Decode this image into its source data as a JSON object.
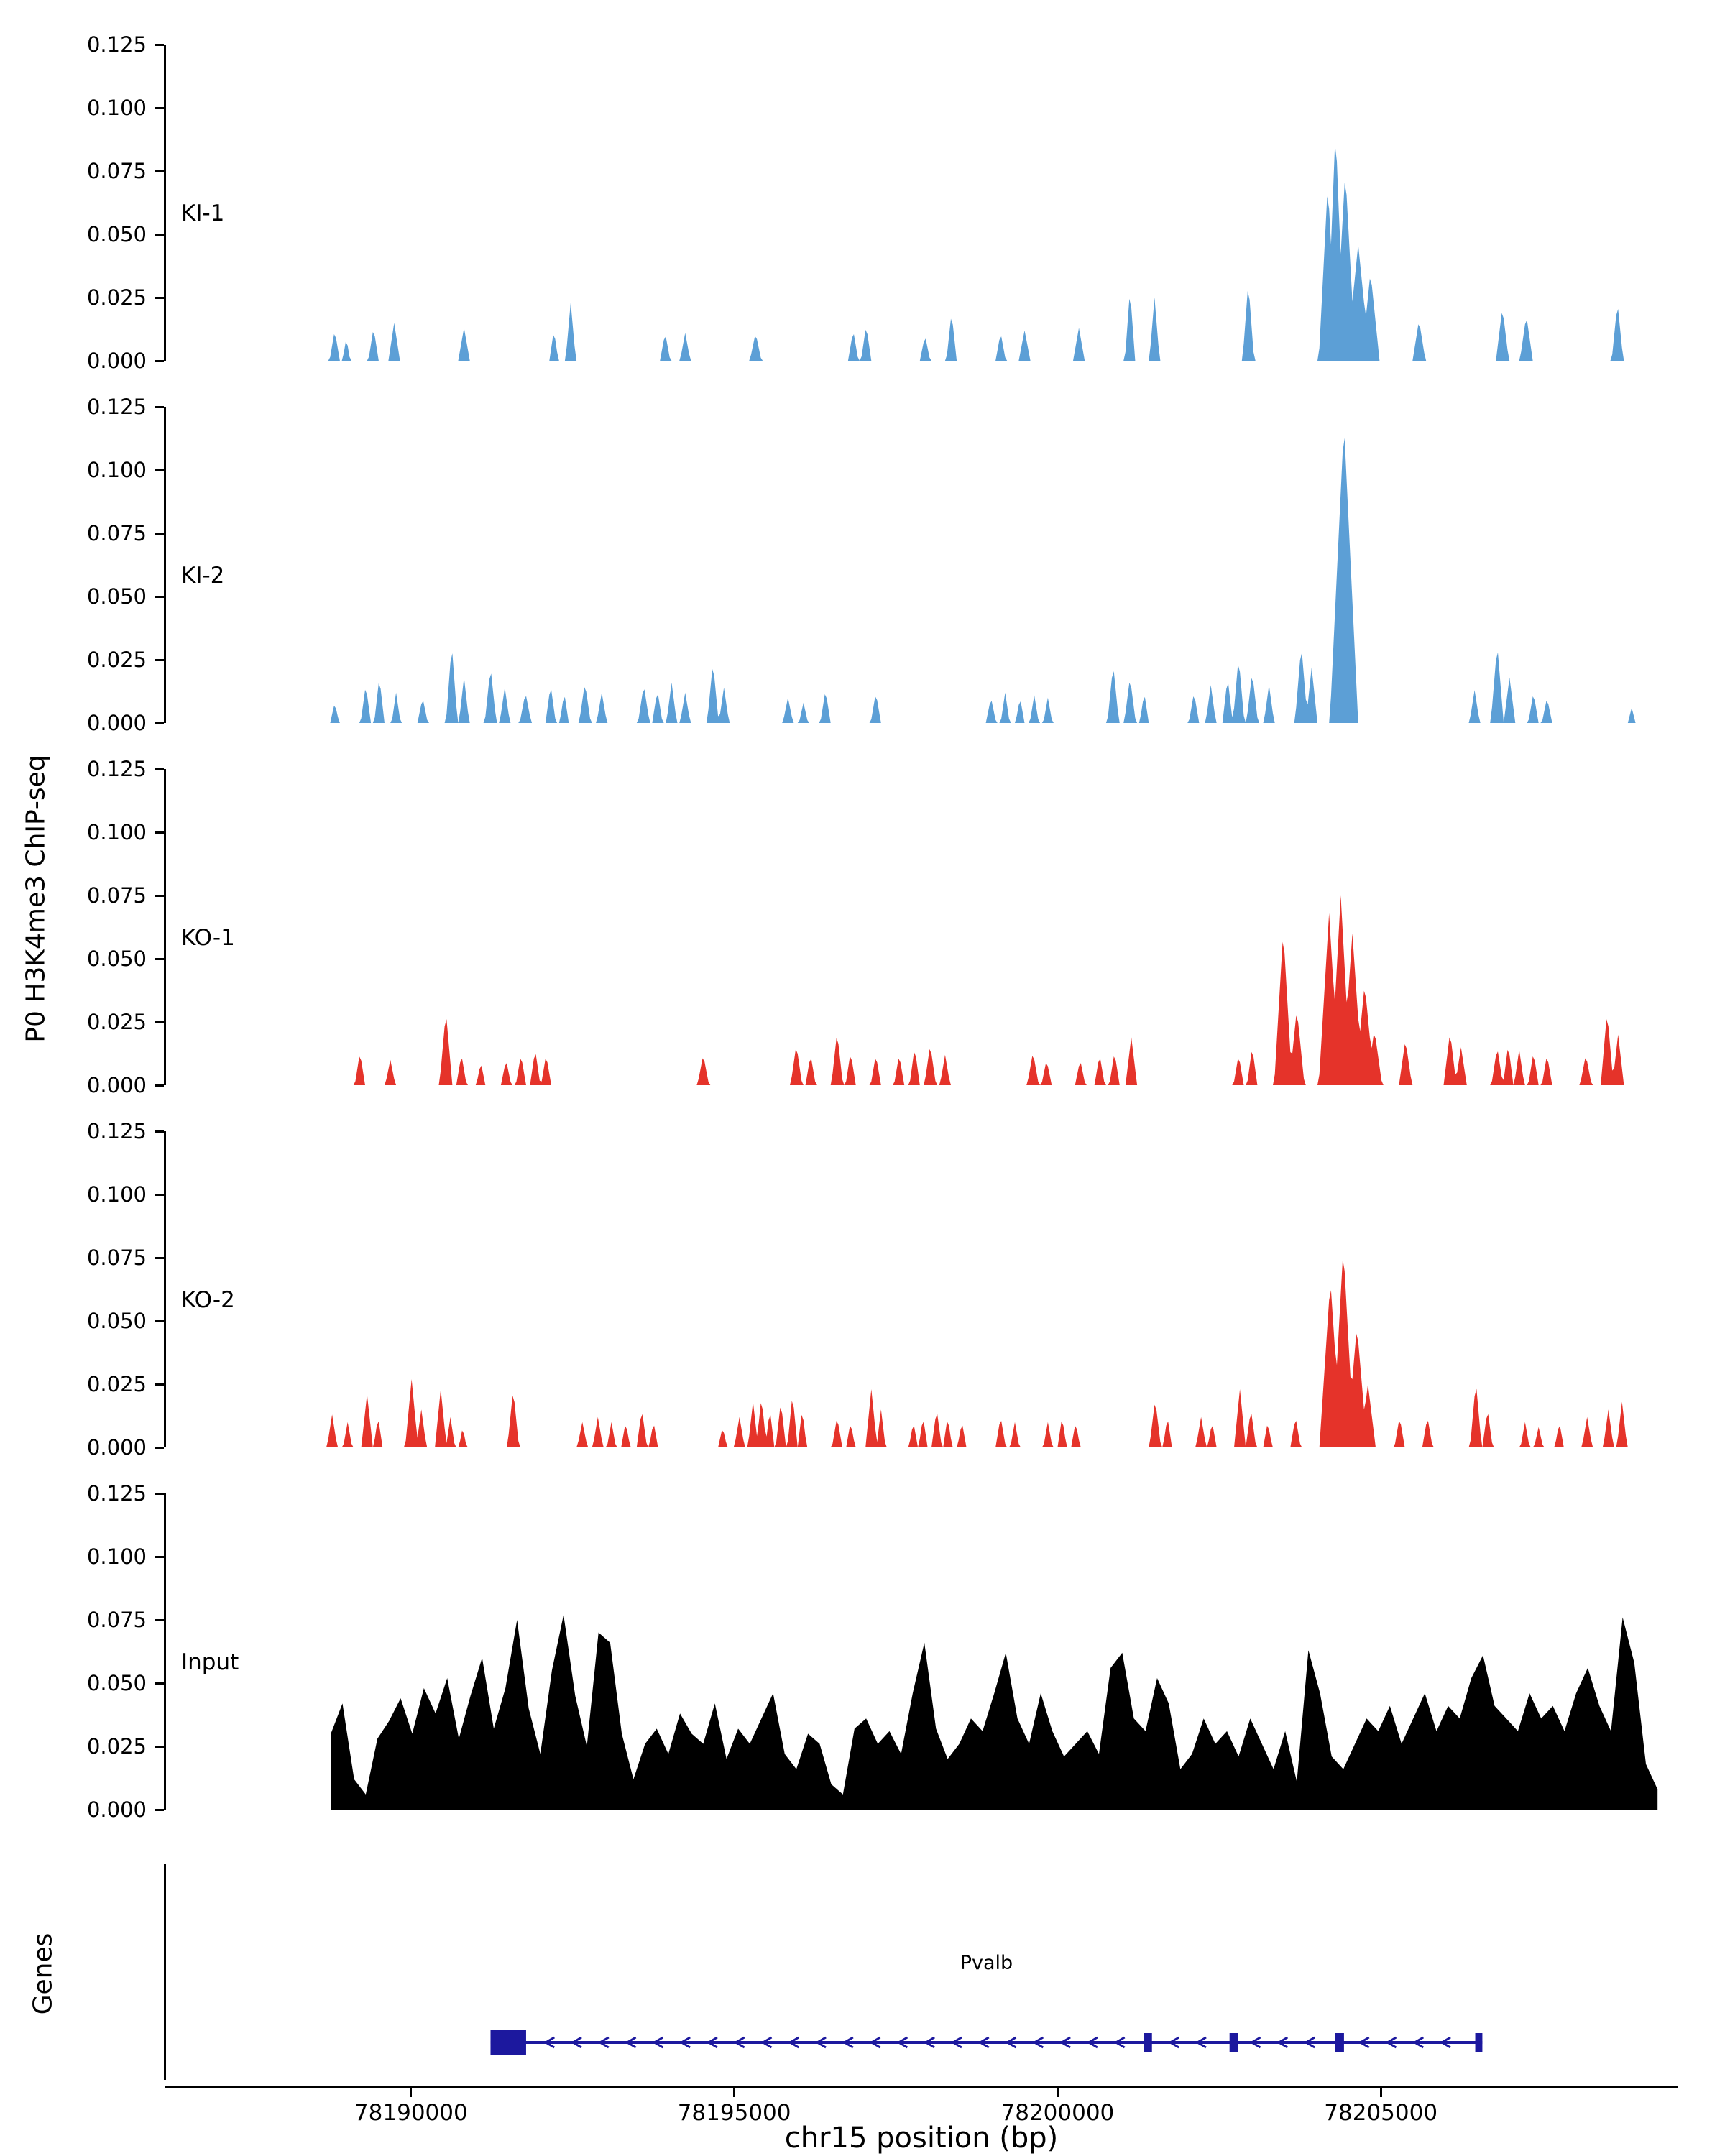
{
  "chart_data": {
    "type": "area",
    "title": "",
    "xlabel": "chr15 position (bp)",
    "ylabel": "P0 H3K4me3 ChIP-seq",
    "genes_panel_label": "Genes",
    "x_range": [
      78186200,
      78209600
    ],
    "x_ticks": [
      78190000,
      78195000,
      78200000,
      78205000
    ],
    "y_range": [
      0,
      0.125
    ],
    "y_ticks": [
      0.0,
      0.025,
      0.05,
      0.075,
      0.1,
      0.125
    ],
    "grid": false,
    "legend": "none",
    "colors": {
      "ki": "#5C9FD6",
      "ko": "#E5332A",
      "input": "#000000",
      "gene": "#1C189E"
    },
    "tracks": [
      {
        "name": "KI-1",
        "color": "#5C9FD6",
        "peaks": [
          [
            78188820,
            80,
            0.012
          ],
          [
            78189000,
            60,
            0.009
          ],
          [
            78189420,
            80,
            0.013
          ],
          [
            78189740,
            90,
            0.015
          ],
          [
            78190820,
            90,
            0.013
          ],
          [
            78192210,
            70,
            0.012
          ],
          [
            78192470,
            80,
            0.023
          ],
          [
            78193930,
            80,
            0.011
          ],
          [
            78194240,
            80,
            0.011
          ],
          [
            78195330,
            90,
            0.011
          ],
          [
            78196840,
            80,
            0.012
          ],
          [
            78197040,
            80,
            0.014
          ],
          [
            78197950,
            80,
            0.01
          ],
          [
            78198360,
            80,
            0.019
          ],
          [
            78199120,
            80,
            0.011
          ],
          [
            78199490,
            90,
            0.012
          ],
          [
            78200330,
            90,
            0.013
          ],
          [
            78201120,
            80,
            0.028
          ],
          [
            78201500,
            80,
            0.025
          ],
          [
            78202950,
            90,
            0.031
          ],
          [
            78204180,
            140,
            0.07
          ],
          [
            78204300,
            140,
            0.092
          ],
          [
            78204450,
            160,
            0.075
          ],
          [
            78204650,
            180,
            0.046
          ],
          [
            78204840,
            140,
            0.035
          ],
          [
            78205590,
            100,
            0.016
          ],
          [
            78206880,
            100,
            0.021
          ],
          [
            78207250,
            100,
            0.018
          ],
          [
            78208660,
            90,
            0.023
          ]
        ]
      },
      {
        "name": "KI-2",
        "color": "#5C9FD6",
        "peaks": [
          [
            78188820,
            70,
            0.008
          ],
          [
            78189300,
            80,
            0.015
          ],
          [
            78189510,
            80,
            0.018
          ],
          [
            78189770,
            70,
            0.012
          ],
          [
            78190180,
            80,
            0.01
          ],
          [
            78190630,
            90,
            0.031
          ],
          [
            78190820,
            80,
            0.018
          ],
          [
            78191230,
            90,
            0.022
          ],
          [
            78191450,
            80,
            0.014
          ],
          [
            78191770,
            90,
            0.012
          ],
          [
            78192160,
            80,
            0.015
          ],
          [
            78192370,
            70,
            0.012
          ],
          [
            78192690,
            90,
            0.016
          ],
          [
            78192950,
            80,
            0.012
          ],
          [
            78193600,
            90,
            0.015
          ],
          [
            78193810,
            80,
            0.013
          ],
          [
            78194030,
            80,
            0.016
          ],
          [
            78194240,
            80,
            0.012
          ],
          [
            78194670,
            90,
            0.024
          ],
          [
            78194840,
            80,
            0.014
          ],
          [
            78195830,
            80,
            0.01
          ],
          [
            78196070,
            70,
            0.008
          ],
          [
            78196410,
            80,
            0.013
          ],
          [
            78197190,
            80,
            0.012
          ],
          [
            78198970,
            80,
            0.01
          ],
          [
            78199190,
            70,
            0.012
          ],
          [
            78199420,
            70,
            0.01
          ],
          [
            78199640,
            70,
            0.011
          ],
          [
            78199850,
            70,
            0.01
          ],
          [
            78200860,
            90,
            0.023
          ],
          [
            78201120,
            90,
            0.018
          ],
          [
            78201340,
            70,
            0.012
          ],
          [
            78202110,
            80,
            0.012
          ],
          [
            78202370,
            80,
            0.015
          ],
          [
            78202630,
            80,
            0.018
          ],
          [
            78202800,
            90,
            0.026
          ],
          [
            78203010,
            90,
            0.02
          ],
          [
            78203270,
            80,
            0.015
          ],
          [
            78203770,
            100,
            0.031
          ],
          [
            78203930,
            90,
            0.022
          ],
          [
            78204430,
            220,
            0.118
          ],
          [
            78206450,
            80,
            0.013
          ],
          [
            78206800,
            100,
            0.031
          ],
          [
            78206990,
            90,
            0.018
          ],
          [
            78207360,
            80,
            0.012
          ],
          [
            78207570,
            80,
            0.01
          ],
          [
            78208880,
            60,
            0.006
          ]
        ]
      },
      {
        "name": "KO-1",
        "color": "#E5332A",
        "peaks": [
          [
            78189210,
            80,
            0.013
          ],
          [
            78189680,
            80,
            0.01
          ],
          [
            78190540,
            100,
            0.029
          ],
          [
            78190780,
            80,
            0.012
          ],
          [
            78191080,
            70,
            0.009
          ],
          [
            78191470,
            80,
            0.01
          ],
          [
            78191700,
            80,
            0.012
          ],
          [
            78191920,
            80,
            0.014
          ],
          [
            78192090,
            80,
            0.012
          ],
          [
            78194520,
            90,
            0.012
          ],
          [
            78195960,
            90,
            0.016
          ],
          [
            78196180,
            80,
            0.012
          ],
          [
            78196590,
            90,
            0.021
          ],
          [
            78196800,
            80,
            0.013
          ],
          [
            78197190,
            80,
            0.012
          ],
          [
            78197550,
            80,
            0.012
          ],
          [
            78197790,
            80,
            0.015
          ],
          [
            78198030,
            90,
            0.016
          ],
          [
            78198260,
            80,
            0.012
          ],
          [
            78199620,
            90,
            0.013
          ],
          [
            78199830,
            80,
            0.01
          ],
          [
            78200350,
            80,
            0.01
          ],
          [
            78200650,
            80,
            0.012
          ],
          [
            78200880,
            80,
            0.013
          ],
          [
            78201140,
            90,
            0.019
          ],
          [
            78202800,
            80,
            0.012
          ],
          [
            78203010,
            80,
            0.015
          ],
          [
            78203490,
            140,
            0.061
          ],
          [
            78203700,
            120,
            0.03
          ],
          [
            78204200,
            160,
            0.068
          ],
          [
            78204380,
            160,
            0.075
          ],
          [
            78204560,
            160,
            0.06
          ],
          [
            78204750,
            150,
            0.04
          ],
          [
            78204900,
            120,
            0.022
          ],
          [
            78205380,
            100,
            0.018
          ],
          [
            78206070,
            100,
            0.021
          ],
          [
            78206240,
            90,
            0.015
          ],
          [
            78206800,
            90,
            0.015
          ],
          [
            78206970,
            80,
            0.016
          ],
          [
            78207140,
            80,
            0.014
          ],
          [
            78207360,
            80,
            0.013
          ],
          [
            78207570,
            80,
            0.012
          ],
          [
            78208170,
            90,
            0.012
          ],
          [
            78208500,
            100,
            0.029
          ],
          [
            78208670,
            90,
            0.02
          ]
        ]
      },
      {
        "name": "KO-2",
        "color": "#E5332A",
        "peaks": [
          [
            78188780,
            80,
            0.013
          ],
          [
            78189020,
            70,
            0.01
          ],
          [
            78189320,
            90,
            0.021
          ],
          [
            78189490,
            70,
            0.012
          ],
          [
            78190010,
            100,
            0.027
          ],
          [
            78190160,
            80,
            0.015
          ],
          [
            78190460,
            90,
            0.023
          ],
          [
            78190610,
            70,
            0.012
          ],
          [
            78190800,
            60,
            0.008
          ],
          [
            78191580,
            90,
            0.023
          ],
          [
            78192650,
            80,
            0.01
          ],
          [
            78192890,
            80,
            0.012
          ],
          [
            78193100,
            70,
            0.01
          ],
          [
            78193320,
            70,
            0.01
          ],
          [
            78193570,
            80,
            0.015
          ],
          [
            78193750,
            70,
            0.01
          ],
          [
            78194820,
            70,
            0.008
          ],
          [
            78195080,
            80,
            0.012
          ],
          [
            78195290,
            80,
            0.018
          ],
          [
            78195420,
            80,
            0.02
          ],
          [
            78195550,
            70,
            0.015
          ],
          [
            78195720,
            80,
            0.018
          ],
          [
            78195900,
            80,
            0.021
          ],
          [
            78196050,
            70,
            0.015
          ],
          [
            78196590,
            80,
            0.012
          ],
          [
            78196800,
            70,
            0.01
          ],
          [
            78197120,
            90,
            0.023
          ],
          [
            78197270,
            70,
            0.015
          ],
          [
            78197770,
            70,
            0.01
          ],
          [
            78197920,
            70,
            0.012
          ],
          [
            78198130,
            80,
            0.015
          ],
          [
            78198300,
            70,
            0.012
          ],
          [
            78198520,
            70,
            0.01
          ],
          [
            78199120,
            80,
            0.012
          ],
          [
            78199340,
            70,
            0.01
          ],
          [
            78199850,
            70,
            0.01
          ],
          [
            78200070,
            70,
            0.012
          ],
          [
            78200280,
            70,
            0.01
          ],
          [
            78201510,
            90,
            0.019
          ],
          [
            78201700,
            70,
            0.012
          ],
          [
            78202220,
            80,
            0.012
          ],
          [
            78202390,
            70,
            0.01
          ],
          [
            78202820,
            90,
            0.023
          ],
          [
            78202990,
            80,
            0.015
          ],
          [
            78203250,
            70,
            0.01
          ],
          [
            78203680,
            80,
            0.012
          ],
          [
            78204220,
            170,
            0.066
          ],
          [
            78204420,
            170,
            0.079
          ],
          [
            78204630,
            160,
            0.048
          ],
          [
            78204800,
            120,
            0.025
          ],
          [
            78205290,
            80,
            0.012
          ],
          [
            78205720,
            80,
            0.012
          ],
          [
            78206470,
            90,
            0.026
          ],
          [
            78206650,
            80,
            0.015
          ],
          [
            78207230,
            70,
            0.01
          ],
          [
            78207440,
            70,
            0.008
          ],
          [
            78207760,
            70,
            0.01
          ],
          [
            78208190,
            80,
            0.012
          ],
          [
            78208520,
            80,
            0.015
          ],
          [
            78208730,
            80,
            0.018
          ]
        ]
      },
      {
        "name": "Input",
        "color": "#000000",
        "profile": {
          "start": 78188760,
          "step": 180,
          "values": [
            0.03,
            0.042,
            0.012,
            0.006,
            0.028,
            0.035,
            0.044,
            0.03,
            0.048,
            0.038,
            0.052,
            0.028,
            0.045,
            0.06,
            0.032,
            0.048,
            0.075,
            0.04,
            0.022,
            0.055,
            0.077,
            0.045,
            0.025,
            0.07,
            0.066,
            0.03,
            0.012,
            0.026,
            0.032,
            0.022,
            0.038,
            0.03,
            0.026,
            0.042,
            0.02,
            0.032,
            0.026,
            0.036,
            0.046,
            0.022,
            0.016,
            0.03,
            0.026,
            0.01,
            0.006,
            0.032,
            0.036,
            0.026,
            0.031,
            0.022,
            0.046,
            0.066,
            0.032,
            0.02,
            0.026,
            0.036,
            0.031,
            0.046,
            0.062,
            0.036,
            0.026,
            0.046,
            0.031,
            0.021,
            0.026,
            0.031,
            0.022,
            0.056,
            0.062,
            0.036,
            0.031,
            0.052,
            0.042,
            0.016,
            0.022,
            0.036,
            0.026,
            0.031,
            0.021,
            0.036,
            0.026,
            0.016,
            0.031,
            0.011,
            0.063,
            0.046,
            0.021,
            0.016,
            0.026,
            0.036,
            0.031,
            0.041,
            0.026,
            0.036,
            0.046,
            0.031,
            0.041,
            0.036,
            0.052,
            0.061,
            0.041,
            0.036,
            0.031,
            0.046,
            0.036,
            0.041,
            0.031,
            0.046,
            0.056,
            0.041,
            0.031,
            0.076,
            0.058,
            0.018,
            0.008
          ]
        }
      }
    ],
    "genes": {
      "items": [
        {
          "name": "Pvalb",
          "chrom": "chr15",
          "start": 78191230,
          "end": 78206570,
          "strand": "-",
          "color": "#1C189E",
          "exons": [
            [
              78191230,
              78191780
            ],
            [
              78201330,
              78201460
            ],
            [
              78202660,
              78202790
            ],
            [
              78204290,
              78204430
            ],
            [
              78206460,
              78206570
            ]
          ]
        }
      ]
    }
  }
}
